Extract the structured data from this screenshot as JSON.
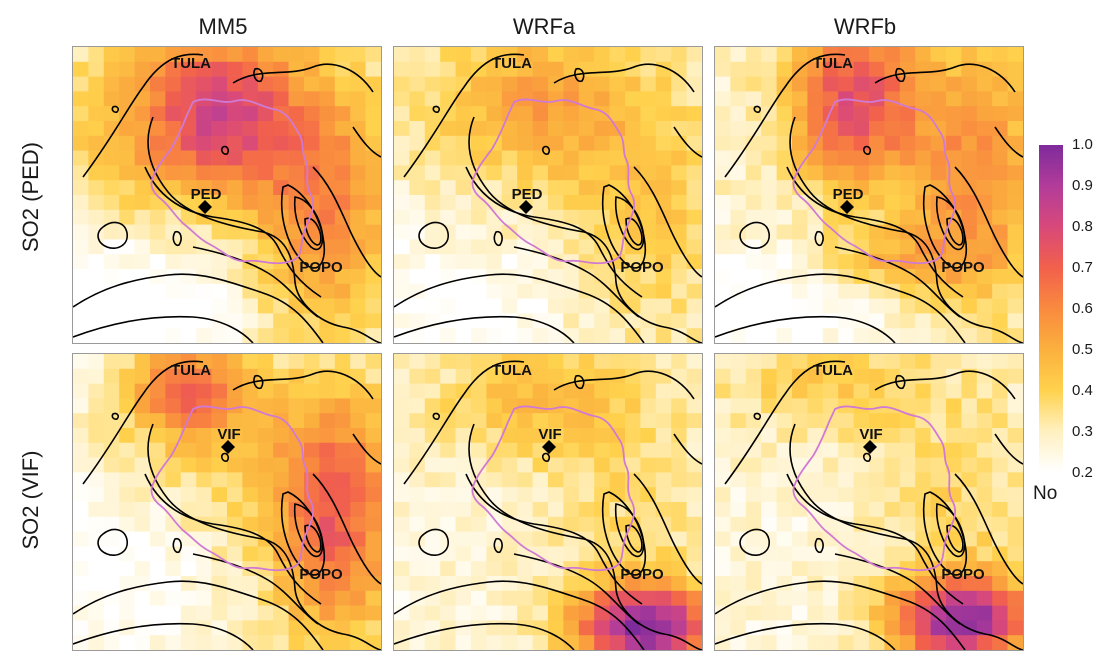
{
  "chart_data": {
    "type": "heatmap",
    "columns": [
      "MM5",
      "WRFa",
      "WRFb"
    ],
    "rows": [
      "SO2 (PED)",
      "SO2 (VIF)"
    ],
    "colorbar": {
      "range": [
        0.2,
        1.0
      ],
      "ticks": [
        "1.0",
        "0.9",
        "0.8",
        "0.7",
        "0.6",
        "0.5",
        "0.4",
        "0.3",
        "0.2"
      ],
      "label": "No",
      "colors": [
        "#ffffff",
        "#fff0c0",
        "#ffd24d",
        "#fbb03e",
        "#f98a3f",
        "#f2604c",
        "#d8497a",
        "#b23c9a",
        "#7e2b9b"
      ]
    },
    "sites": [
      "TULA",
      "PED",
      "VIF",
      "POPO"
    ],
    "panels": [
      {
        "column": "MM5",
        "row": "SO2 (PED)",
        "station": "PED",
        "labels": [
          "TULA",
          "PED",
          "POPO"
        ]
      },
      {
        "column": "WRFa",
        "row": "SO2 (PED)",
        "station": "PED",
        "labels": [
          "TULA",
          "PED",
          "POPO"
        ]
      },
      {
        "column": "WRFb",
        "row": "SO2 (PED)",
        "station": "PED",
        "labels": [
          "TULA",
          "PED",
          "POPO"
        ]
      },
      {
        "column": "MM5",
        "row": "SO2 (VIF)",
        "station": "VIF",
        "labels": [
          "TULA",
          "VIF",
          "POPO"
        ]
      },
      {
        "column": "WRFa",
        "row": "SO2 (VIF)",
        "station": "VIF",
        "labels": [
          "TULA",
          "VIF",
          "POPO"
        ]
      },
      {
        "column": "WRFb",
        "row": "SO2 (VIF)",
        "station": "VIF",
        "labels": [
          "TULA",
          "VIF",
          "POPO"
        ]
      }
    ]
  }
}
